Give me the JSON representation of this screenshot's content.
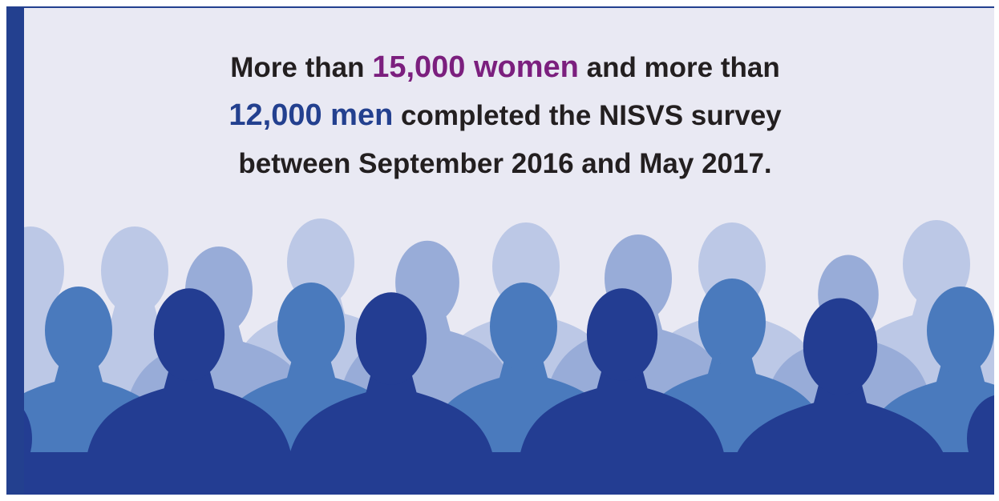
{
  "headline": {
    "lines": [
      [
        "More than ",
        "15,000 women",
        " and more than"
      ],
      [
        "12,000 men",
        " completed the NISVS survey"
      ],
      [
        "between September 2016 and May 2017."
      ]
    ]
  }
}
